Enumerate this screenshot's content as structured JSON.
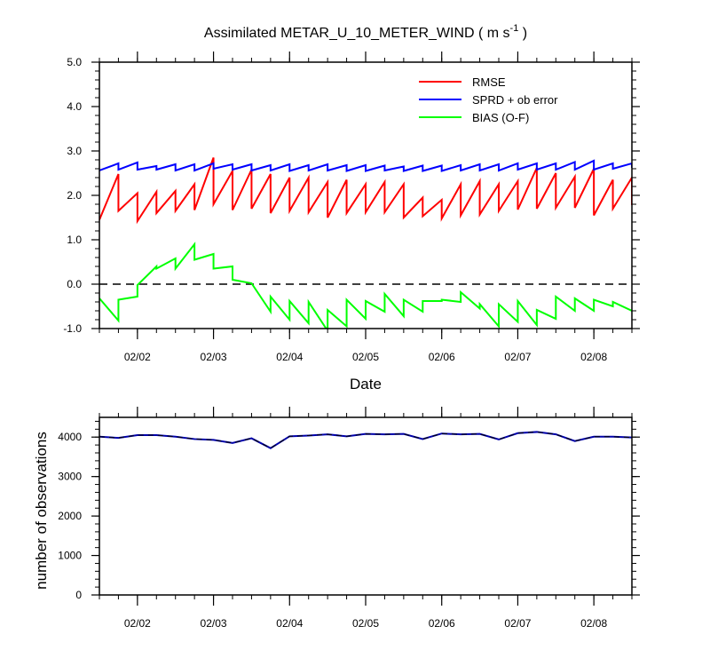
{
  "chart_data": [
    {
      "type": "line",
      "title": "Assimilated METAR_U_10_METER_WIND ( m s-1 )",
      "title_main": "Assimilated METAR_U_10_METER_WIND ( m s",
      "title_sup": "-1",
      "title_end": " )",
      "xlabel": "Date",
      "ylabel": "",
      "xlim": [
        1.5,
        8.5
      ],
      "ylim": [
        -1.0,
        5.0
      ],
      "x_ticks": [
        {
          "x": 2,
          "label": "02/02"
        },
        {
          "x": 3,
          "label": "02/03"
        },
        {
          "x": 4,
          "label": "02/04"
        },
        {
          "x": 5,
          "label": "02/05"
        },
        {
          "x": 6,
          "label": "02/06"
        },
        {
          "x": 7,
          "label": "02/07"
        },
        {
          "x": 8,
          "label": "02/08"
        }
      ],
      "y_ticks": [
        {
          "v": -1.0,
          "label": "-1.0"
        },
        {
          "v": 0.0,
          "label": "0.0"
        },
        {
          "v": 1.0,
          "label": "1.0"
        },
        {
          "v": 2.0,
          "label": "2.0"
        },
        {
          "v": 3.0,
          "label": "3.0"
        },
        {
          "v": 4.0,
          "label": "4.0"
        },
        {
          "v": 5.0,
          "label": "5.0"
        }
      ],
      "zero_line": true,
      "legend_position": "top-right",
      "series": [
        {
          "name": "RMSE",
          "color": "#ff0000",
          "points": [
            [
              1.5,
              1.45
            ],
            [
              1.75,
              2.48
            ],
            [
              1.75,
              1.65
            ],
            [
              2.0,
              2.05
            ],
            [
              2.0,
              1.42
            ],
            [
              2.25,
              2.08
            ],
            [
              2.25,
              1.6
            ],
            [
              2.5,
              2.1
            ],
            [
              2.5,
              1.65
            ],
            [
              2.75,
              2.25
            ],
            [
              2.75,
              1.67
            ],
            [
              3.0,
              2.85
            ],
            [
              3.0,
              1.8
            ],
            [
              3.25,
              2.55
            ],
            [
              3.25,
              1.67
            ],
            [
              3.5,
              2.58
            ],
            [
              3.5,
              1.7
            ],
            [
              3.75,
              2.48
            ],
            [
              3.75,
              1.6
            ],
            [
              4.0,
              2.4
            ],
            [
              4.0,
              1.65
            ],
            [
              4.25,
              2.4
            ],
            [
              4.25,
              1.62
            ],
            [
              4.5,
              2.3
            ],
            [
              4.5,
              1.5
            ],
            [
              4.75,
              2.35
            ],
            [
              4.75,
              1.6
            ],
            [
              5.0,
              2.25
            ],
            [
              5.0,
              1.62
            ],
            [
              5.25,
              2.3
            ],
            [
              5.25,
              1.62
            ],
            [
              5.5,
              2.25
            ],
            [
              5.5,
              1.5
            ],
            [
              5.75,
              1.95
            ],
            [
              5.75,
              1.53
            ],
            [
              6.0,
              1.9
            ],
            [
              6.0,
              1.48
            ],
            [
              6.25,
              2.25
            ],
            [
              6.25,
              1.55
            ],
            [
              6.5,
              2.32
            ],
            [
              6.5,
              1.57
            ],
            [
              6.75,
              2.25
            ],
            [
              6.75,
              1.65
            ],
            [
              7.0,
              2.32
            ],
            [
              7.0,
              1.68
            ],
            [
              7.25,
              2.62
            ],
            [
              7.25,
              1.7
            ],
            [
              7.5,
              2.5
            ],
            [
              7.5,
              1.72
            ],
            [
              7.75,
              2.42
            ],
            [
              7.75,
              1.72
            ],
            [
              8.0,
              2.6
            ],
            [
              8.0,
              1.55
            ],
            [
              8.25,
              2.35
            ],
            [
              8.25,
              1.7
            ],
            [
              8.5,
              2.4
            ],
            [
              8.5,
              1.78
            ]
          ]
        },
        {
          "name": "SPRD + ob error",
          "color": "#0000ff",
          "points": [
            [
              1.5,
              2.56
            ],
            [
              1.75,
              2.72
            ],
            [
              1.75,
              2.58
            ],
            [
              2.0,
              2.74
            ],
            [
              2.0,
              2.58
            ],
            [
              2.25,
              2.66
            ],
            [
              2.25,
              2.58
            ],
            [
              2.5,
              2.7
            ],
            [
              2.5,
              2.56
            ],
            [
              2.75,
              2.7
            ],
            [
              2.75,
              2.56
            ],
            [
              3.0,
              2.72
            ],
            [
              3.0,
              2.6
            ],
            [
              3.25,
              2.7
            ],
            [
              3.25,
              2.58
            ],
            [
              3.5,
              2.7
            ],
            [
              3.5,
              2.56
            ],
            [
              3.75,
              2.68
            ],
            [
              3.75,
              2.56
            ],
            [
              4.0,
              2.7
            ],
            [
              4.0,
              2.55
            ],
            [
              4.25,
              2.68
            ],
            [
              4.25,
              2.56
            ],
            [
              4.5,
              2.7
            ],
            [
              4.5,
              2.56
            ],
            [
              4.75,
              2.68
            ],
            [
              4.75,
              2.55
            ],
            [
              5.0,
              2.68
            ],
            [
              5.0,
              2.55
            ],
            [
              5.25,
              2.67
            ],
            [
              5.25,
              2.56
            ],
            [
              5.5,
              2.65
            ],
            [
              5.5,
              2.55
            ],
            [
              5.75,
              2.67
            ],
            [
              5.75,
              2.55
            ],
            [
              6.0,
              2.67
            ],
            [
              6.0,
              2.55
            ],
            [
              6.25,
              2.68
            ],
            [
              6.25,
              2.56
            ],
            [
              6.5,
              2.7
            ],
            [
              6.5,
              2.56
            ],
            [
              6.75,
              2.7
            ],
            [
              6.75,
              2.56
            ],
            [
              7.0,
              2.72
            ],
            [
              7.0,
              2.58
            ],
            [
              7.25,
              2.72
            ],
            [
              7.25,
              2.58
            ],
            [
              7.5,
              2.72
            ],
            [
              7.5,
              2.58
            ],
            [
              7.75,
              2.75
            ],
            [
              7.75,
              2.58
            ],
            [
              8.0,
              2.78
            ],
            [
              8.0,
              2.58
            ],
            [
              8.25,
              2.72
            ],
            [
              8.25,
              2.6
            ],
            [
              8.5,
              2.72
            ],
            [
              8.5,
              2.62
            ]
          ]
        },
        {
          "name": "BIAS (O-F)",
          "color": "#00ff00",
          "points": [
            [
              1.5,
              -0.32
            ],
            [
              1.75,
              -0.82
            ],
            [
              1.75,
              -0.35
            ],
            [
              2.0,
              -0.28
            ],
            [
              2.0,
              -0.02
            ],
            [
              2.25,
              0.4
            ],
            [
              2.25,
              0.35
            ],
            [
              2.5,
              0.58
            ],
            [
              2.5,
              0.35
            ],
            [
              2.75,
              0.9
            ],
            [
              2.75,
              0.55
            ],
            [
              3.0,
              0.68
            ],
            [
              3.0,
              0.35
            ],
            [
              3.25,
              0.4
            ],
            [
              3.25,
              0.1
            ],
            [
              3.5,
              0.02
            ],
            [
              3.5,
              0.02
            ],
            [
              3.75,
              -0.62
            ],
            [
              3.75,
              -0.28
            ],
            [
              4.0,
              -0.8
            ],
            [
              4.0,
              -0.38
            ],
            [
              4.25,
              -0.88
            ],
            [
              4.25,
              -0.4
            ],
            [
              4.5,
              -1.05
            ],
            [
              4.5,
              -0.58
            ],
            [
              4.75,
              -0.95
            ],
            [
              4.75,
              -0.35
            ],
            [
              5.0,
              -0.78
            ],
            [
              5.0,
              -0.38
            ],
            [
              5.25,
              -0.62
            ],
            [
              5.25,
              -0.22
            ],
            [
              5.5,
              -0.72
            ],
            [
              5.5,
              -0.35
            ],
            [
              5.75,
              -0.62
            ],
            [
              5.75,
              -0.38
            ],
            [
              6.0,
              -0.38
            ],
            [
              6.0,
              -0.35
            ],
            [
              6.25,
              -0.4
            ],
            [
              6.25,
              -0.18
            ],
            [
              6.5,
              -0.55
            ],
            [
              6.5,
              -0.45
            ],
            [
              6.75,
              -0.95
            ],
            [
              6.75,
              -0.45
            ],
            [
              7.0,
              -0.85
            ],
            [
              7.0,
              -0.38
            ],
            [
              7.25,
              -0.92
            ],
            [
              7.25,
              -0.58
            ],
            [
              7.5,
              -0.78
            ],
            [
              7.5,
              -0.28
            ],
            [
              7.75,
              -0.6
            ],
            [
              7.75,
              -0.32
            ],
            [
              8.0,
              -0.6
            ],
            [
              8.0,
              -0.35
            ],
            [
              8.25,
              -0.5
            ],
            [
              8.25,
              -0.4
            ],
            [
              8.5,
              -0.6
            ]
          ]
        }
      ]
    },
    {
      "type": "line",
      "title": "",
      "xlabel": "",
      "ylabel": "number of observations",
      "xlim": [
        1.5,
        8.5
      ],
      "ylim": [
        0,
        4500
      ],
      "x_ticks": [
        {
          "x": 2,
          "label": "02/02"
        },
        {
          "x": 3,
          "label": "02/03"
        },
        {
          "x": 4,
          "label": "02/04"
        },
        {
          "x": 5,
          "label": "02/05"
        },
        {
          "x": 6,
          "label": "02/06"
        },
        {
          "x": 7,
          "label": "02/07"
        },
        {
          "x": 8,
          "label": "02/08"
        }
      ],
      "y_ticks": [
        {
          "v": 0,
          "label": "0"
        },
        {
          "v": 1000,
          "label": "1000"
        },
        {
          "v": 2000,
          "label": "2000"
        },
        {
          "v": 3000,
          "label": "3000"
        },
        {
          "v": 4000,
          "label": "4000"
        }
      ],
      "series": [
        {
          "color": "#0000aa",
          "points": [
            [
              1.5,
              4010
            ],
            [
              1.75,
              3980
            ],
            [
              2.0,
              4050
            ],
            [
              2.25,
              4050
            ],
            [
              2.5,
              4010
            ],
            [
              2.75,
              3950
            ],
            [
              3.0,
              3930
            ],
            [
              3.25,
              3850
            ],
            [
              3.5,
              3970
            ],
            [
              3.75,
              3720
            ],
            [
              4.0,
              4020
            ],
            [
              4.25,
              4040
            ],
            [
              4.5,
              4070
            ],
            [
              4.75,
              4020
            ],
            [
              5.0,
              4080
            ],
            [
              5.25,
              4070
            ],
            [
              5.5,
              4080
            ],
            [
              5.75,
              3950
            ],
            [
              6.0,
              4090
            ],
            [
              6.25,
              4070
            ],
            [
              6.5,
              4080
            ],
            [
              6.75,
              3940
            ],
            [
              7.0,
              4100
            ],
            [
              7.25,
              4130
            ],
            [
              7.5,
              4070
            ],
            [
              7.75,
              3900
            ],
            [
              8.0,
              4010
            ],
            [
              8.25,
              4010
            ],
            [
              8.5,
              3990
            ]
          ]
        }
      ]
    }
  ]
}
